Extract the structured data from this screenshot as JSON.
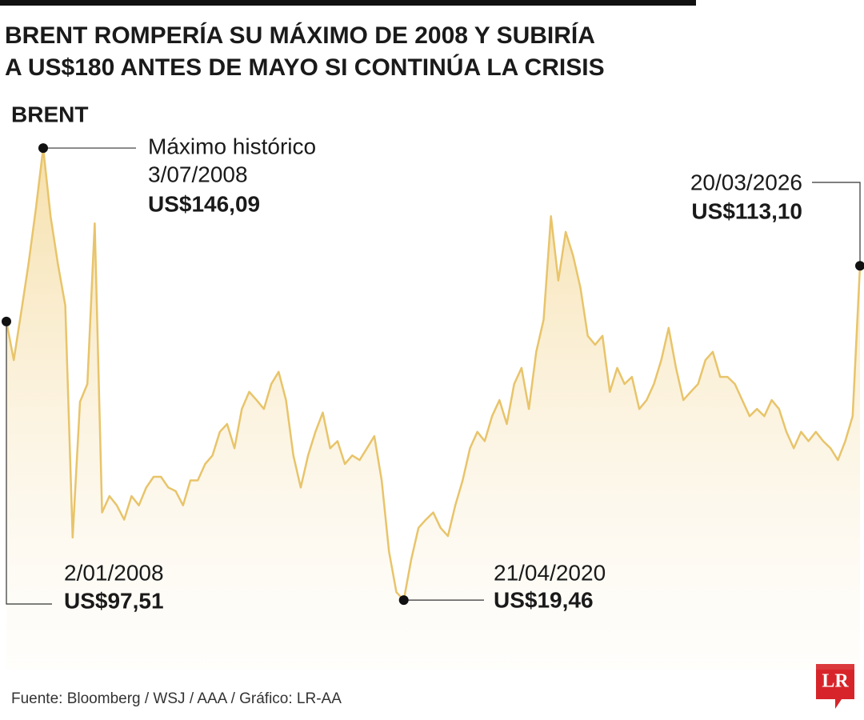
{
  "chart_data": {
    "type": "area",
    "title": [
      "BRENT ROMPERÍA SU MÁXIMO DE 2008 Y SUBIRÍA",
      "A US$180 ANTES DE MAYO SI CONTINÚA LA CRISIS"
    ],
    "subtitle": "BRENT",
    "source": "Fuente: Bloomberg / WSJ / AAA / Gráfico: LR-AA",
    "logo": "LR",
    "color": "#e8c46a",
    "ylim": [
      0,
      160
    ],
    "values": [
      97.51,
      86.7,
      100,
      113.6,
      129,
      146.09,
      127,
      113.6,
      102,
      37,
      75,
      80,
      125,
      44,
      48.6,
      46,
      42,
      48.6,
      46,
      51,
      54,
      54,
      51,
      50,
      46,
      53,
      53,
      57.6,
      60,
      66.6,
      68.8,
      62,
      73,
      77.8,
      75.5,
      73,
      80,
      83.4,
      75.5,
      60,
      51,
      60,
      66.6,
      72,
      62,
      64,
      57.6,
      60,
      58.7,
      62,
      65.4,
      53,
      33,
      21.7,
      19.46,
      30.7,
      39.7,
      42,
      44,
      39.7,
      37.4,
      46,
      53,
      62,
      66.6,
      64,
      71,
      75.5,
      68.8,
      80,
      84.5,
      73,
      89,
      98,
      127,
      109,
      122.6,
      116,
      107,
      93.5,
      91,
      93.5,
      77.8,
      84.5,
      80,
      82,
      73,
      75.5,
      80,
      86.7,
      95.7,
      84.5,
      75.5,
      77.8,
      80,
      86.7,
      89,
      82,
      82,
      80,
      75.5,
      71,
      73,
      71,
      75.5,
      73,
      66.6,
      62,
      66.6,
      64,
      66.6,
      64,
      62,
      58.7,
      64,
      71,
      113.1
    ],
    "annotations": [
      {
        "text": [
          "Máximo histórico",
          "3/07/2008"
        ],
        "value": 146.09,
        "value_label": "US$146,09"
      },
      {
        "text": [
          "2/01/2008"
        ],
        "value": 97.51,
        "value_label": "US$97,51"
      },
      {
        "text": [
          "21/04/2020"
        ],
        "value": 19.46,
        "value_label": "US$19,46"
      },
      {
        "text": [
          "20/03/2026"
        ],
        "value": 113.1,
        "value_label": "US$113,10"
      }
    ]
  }
}
